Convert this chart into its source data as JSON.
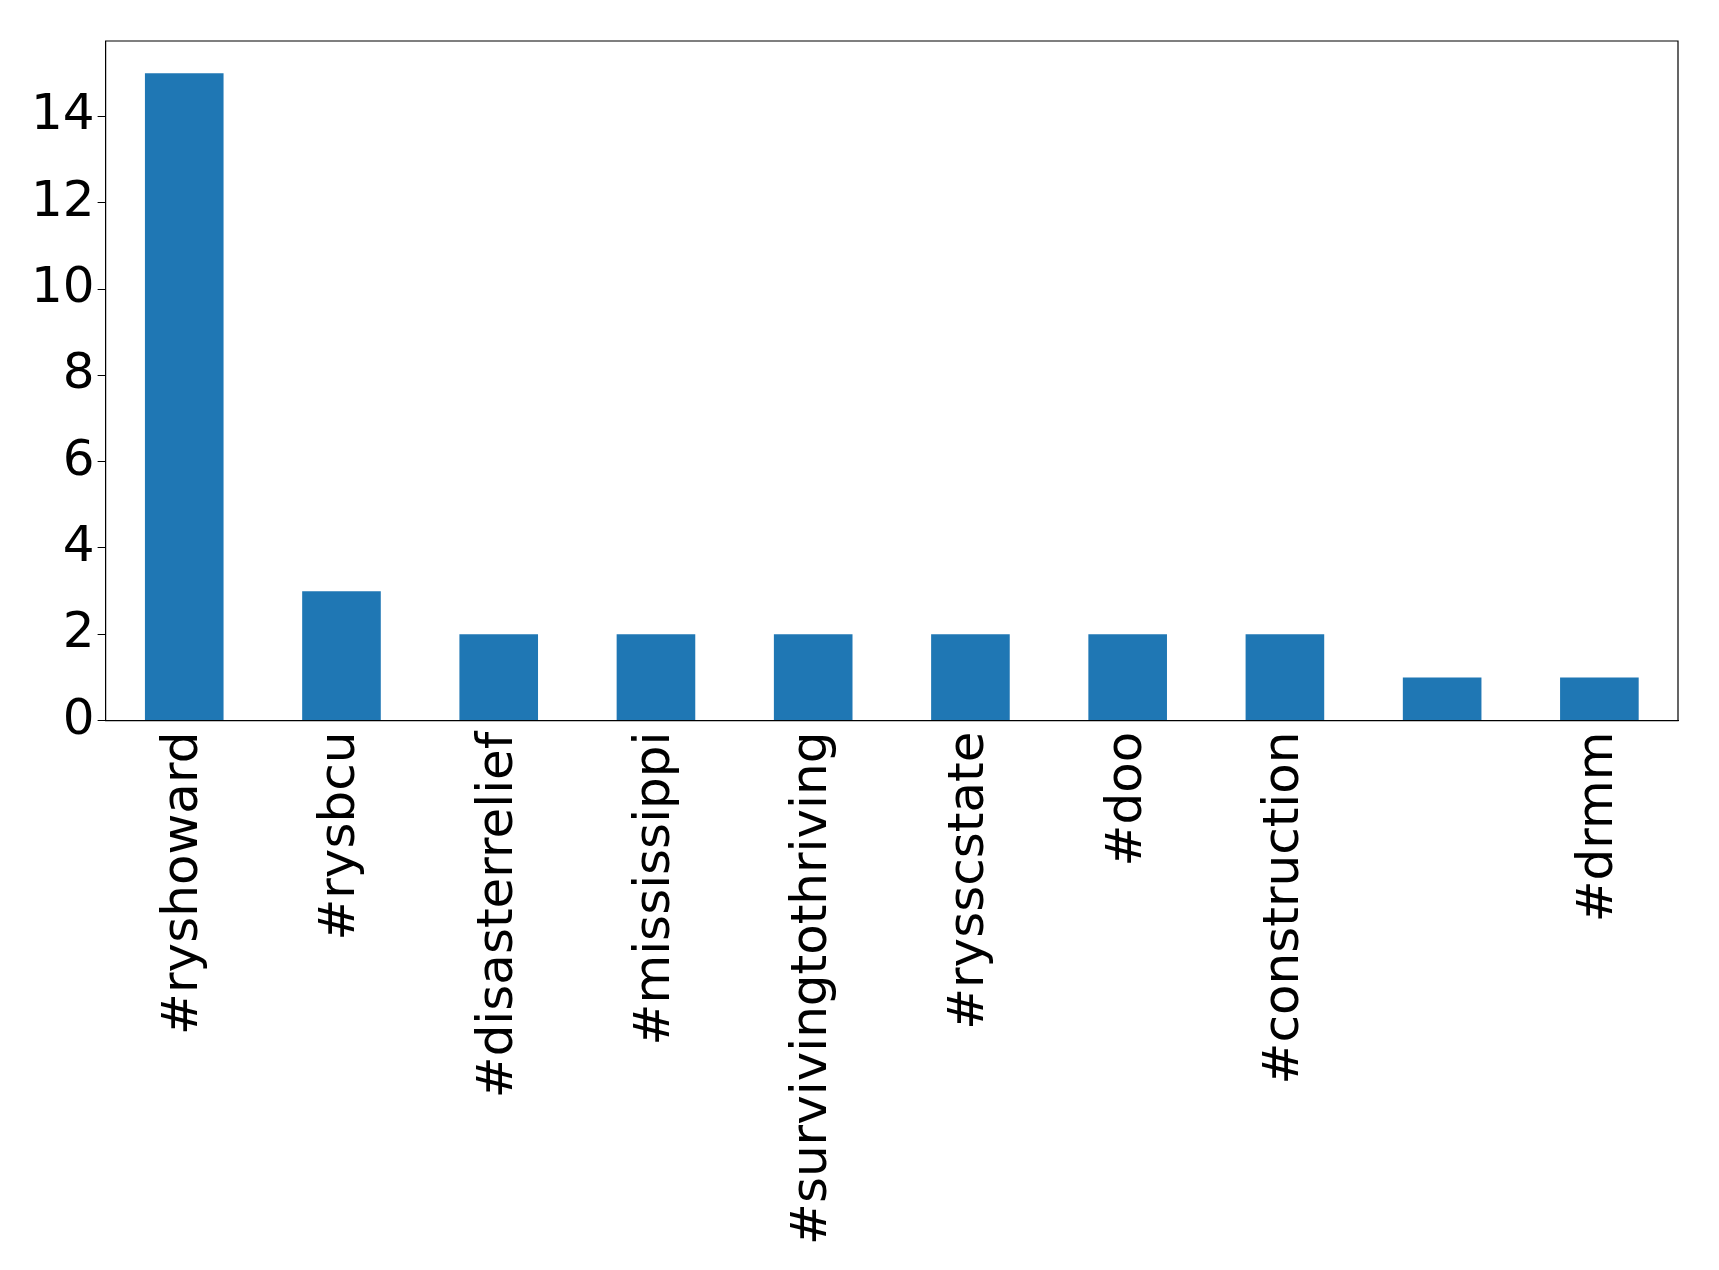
{
  "chart_data": {
    "type": "bar",
    "categories": [
      "#ryshoward",
      "#rysbcu",
      "#disasterrelief",
      "#mississippi",
      "#survivingtothriving",
      "#rysscstate",
      "#doo",
      "#construction",
      null,
      "#drmm"
    ],
    "values": [
      15,
      3,
      2,
      2,
      2,
      2,
      2,
      2,
      1,
      1
    ],
    "color": "#1f77b4",
    "ylim": [
      0,
      15.75
    ],
    "yticks": [
      0,
      2,
      4,
      6,
      8,
      10,
      12,
      14
    ],
    "grid": false,
    "legend": false
  }
}
